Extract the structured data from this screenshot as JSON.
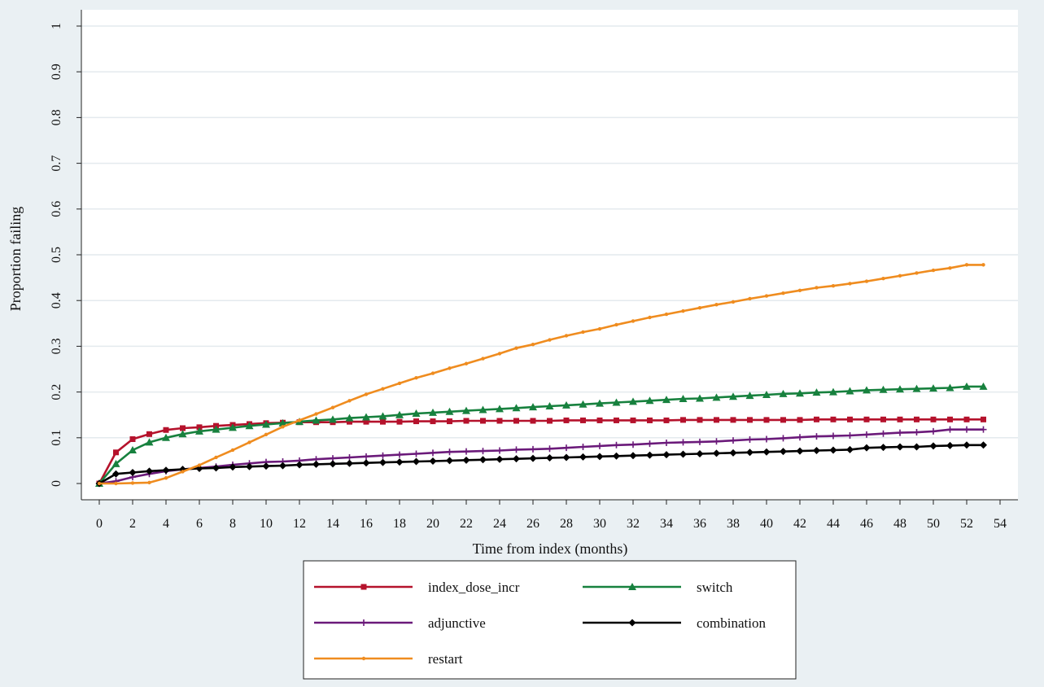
{
  "chart_data": {
    "type": "line",
    "title": "",
    "xlabel": "Time from index (months)",
    "ylabel": "Proportion failing",
    "xlim": [
      0,
      54
    ],
    "ylim": [
      0,
      1
    ],
    "x_ticks": [
      0,
      2,
      4,
      6,
      8,
      10,
      12,
      14,
      16,
      18,
      20,
      22,
      24,
      26,
      28,
      30,
      32,
      34,
      36,
      38,
      40,
      42,
      44,
      46,
      48,
      50,
      52,
      54
    ],
    "y_ticks": [
      0,
      0.1,
      0.2,
      0.3,
      0.4,
      0.5,
      0.6,
      0.7,
      0.8,
      0.9,
      1
    ],
    "y_tick_labels": [
      "0",
      "0.1",
      "0.2",
      "0.3",
      "0.4",
      "0.5",
      "0.6",
      "0.7",
      "0.8",
      "0.9",
      "1"
    ],
    "grid": true,
    "legend_position": "bottom",
    "x": [
      0,
      1,
      2,
      3,
      4,
      5,
      6,
      7,
      8,
      9,
      10,
      11,
      12,
      13,
      14,
      15,
      16,
      17,
      18,
      19,
      20,
      21,
      22,
      23,
      24,
      25,
      26,
      27,
      28,
      29,
      30,
      31,
      32,
      33,
      34,
      35,
      36,
      37,
      38,
      39,
      40,
      41,
      42,
      43,
      44,
      45,
      46,
      47,
      48,
      49,
      50,
      51,
      52,
      53
    ],
    "series": [
      {
        "name": "index_dose_incr",
        "color": "#b5122c",
        "marker": "square",
        "values": [
          0,
          0.068,
          0.097,
          0.108,
          0.117,
          0.121,
          0.123,
          0.126,
          0.128,
          0.13,
          0.132,
          0.133,
          0.134,
          0.134,
          0.134,
          0.135,
          0.135,
          0.135,
          0.135,
          0.136,
          0.136,
          0.136,
          0.137,
          0.137,
          0.137,
          0.137,
          0.137,
          0.137,
          0.138,
          0.138,
          0.138,
          0.138,
          0.138,
          0.138,
          0.138,
          0.139,
          0.139,
          0.139,
          0.139,
          0.139,
          0.139,
          0.139,
          0.139,
          0.14,
          0.14,
          0.14,
          0.14,
          0.14,
          0.14,
          0.14,
          0.14,
          0.14,
          0.14,
          0.14
        ]
      },
      {
        "name": "switch",
        "color": "#17813e",
        "marker": "triangle",
        "values": [
          0,
          0.043,
          0.073,
          0.09,
          0.1,
          0.108,
          0.114,
          0.118,
          0.122,
          0.126,
          0.129,
          0.132,
          0.135,
          0.138,
          0.14,
          0.143,
          0.145,
          0.147,
          0.15,
          0.153,
          0.155,
          0.157,
          0.159,
          0.161,
          0.163,
          0.165,
          0.167,
          0.169,
          0.171,
          0.173,
          0.175,
          0.177,
          0.179,
          0.181,
          0.183,
          0.185,
          0.186,
          0.188,
          0.19,
          0.192,
          0.194,
          0.196,
          0.197,
          0.199,
          0.2,
          0.202,
          0.204,
          0.205,
          0.206,
          0.207,
          0.208,
          0.209,
          0.212,
          0.212
        ]
      },
      {
        "name": "adjunctive",
        "color": "#6b1a7a",
        "marker": "plus",
        "values": [
          0,
          0.005,
          0.014,
          0.021,
          0.027,
          0.031,
          0.034,
          0.037,
          0.041,
          0.044,
          0.047,
          0.048,
          0.05,
          0.053,
          0.055,
          0.057,
          0.059,
          0.061,
          0.063,
          0.065,
          0.067,
          0.069,
          0.07,
          0.071,
          0.072,
          0.074,
          0.075,
          0.076,
          0.078,
          0.08,
          0.082,
          0.084,
          0.085,
          0.087,
          0.089,
          0.09,
          0.091,
          0.092,
          0.094,
          0.096,
          0.097,
          0.099,
          0.101,
          0.103,
          0.104,
          0.105,
          0.107,
          0.109,
          0.111,
          0.112,
          0.114,
          0.118,
          0.118,
          0.118
        ]
      },
      {
        "name": "combination",
        "color": "#000000",
        "marker": "diamond",
        "values": [
          0,
          0.021,
          0.024,
          0.027,
          0.029,
          0.031,
          0.033,
          0.034,
          0.036,
          0.037,
          0.038,
          0.039,
          0.041,
          0.042,
          0.043,
          0.044,
          0.045,
          0.046,
          0.047,
          0.048,
          0.049,
          0.05,
          0.051,
          0.052,
          0.053,
          0.054,
          0.055,
          0.056,
          0.057,
          0.058,
          0.059,
          0.06,
          0.061,
          0.062,
          0.063,
          0.064,
          0.065,
          0.066,
          0.067,
          0.068,
          0.069,
          0.07,
          0.071,
          0.072,
          0.073,
          0.074,
          0.078,
          0.079,
          0.08,
          0.08,
          0.082,
          0.083,
          0.084,
          0.084
        ]
      },
      {
        "name": "restart",
        "color": "#ef8c1f",
        "marker": "dot",
        "values": [
          0,
          0,
          0.001,
          0.002,
          0.012,
          0.026,
          0.04,
          0.057,
          0.073,
          0.09,
          0.107,
          0.124,
          0.138,
          0.152,
          0.166,
          0.181,
          0.195,
          0.207,
          0.219,
          0.231,
          0.241,
          0.252,
          0.262,
          0.273,
          0.284,
          0.296,
          0.304,
          0.314,
          0.323,
          0.331,
          0.338,
          0.347,
          0.355,
          0.363,
          0.37,
          0.377,
          0.384,
          0.391,
          0.397,
          0.404,
          0.41,
          0.416,
          0.422,
          0.428,
          0.432,
          0.437,
          0.442,
          0.448,
          0.454,
          0.46,
          0.466,
          0.471,
          0.478,
          0.478
        ]
      }
    ]
  }
}
